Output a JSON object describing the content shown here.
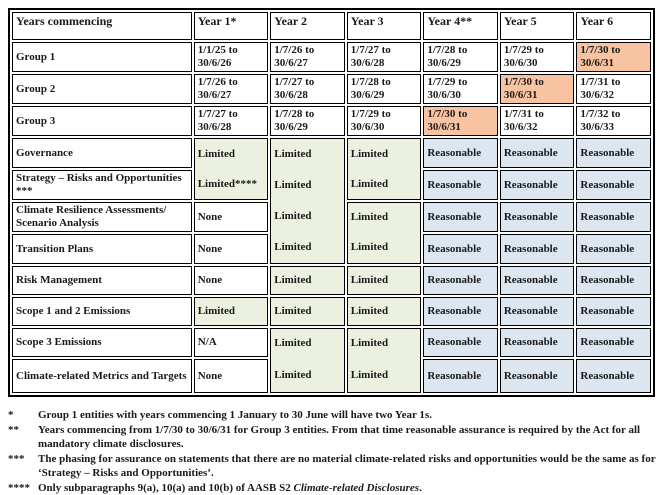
{
  "colors": {
    "limited_green": "#EBF1DE",
    "reasonable_blue": "#DCE6F1",
    "highlight_orange": "#F8C3A0",
    "border": "#000000",
    "text": "#1a1a1a"
  },
  "table": {
    "header": [
      "Years commencing",
      "Year 1*",
      "Year 2",
      "Year 3",
      "Year 4**",
      "Year 5",
      "Year 6"
    ],
    "group_rows": [
      {
        "label": "Group 1",
        "cells": [
          "1/1/25 to 30/6/26",
          "1/7/26 to 30/6/27",
          "1/7/27 to 30/6/28",
          "1/7/28 to 30/6/29",
          "1/7/29 to 30/6/30",
          "1/7/30 to 30/6/31"
        ],
        "highlight_index": 5
      },
      {
        "label": "Group 2",
        "cells": [
          "1/7/26 to 30/6/27",
          "1/7/27 to 30/6/28",
          "1/7/28 to 30/6/29",
          "1/7/29 to 30/6/30",
          "1/7/30 to 30/6/31",
          "1/7/31 to 30/6/32"
        ],
        "highlight_index": 4
      },
      {
        "label": "Group 3",
        "cells": [
          "1/7/27 to 30/6/28",
          "1/7/28 to 30/6/29",
          "1/7/29 to 30/6/30",
          "1/7/30 to 30/6/31",
          "1/7/31 to 30/6/32",
          "1/7/32 to 30/6/33"
        ],
        "highlight_index": 3
      }
    ],
    "assurance_rows": [
      {
        "label": "Governance",
        "cells": [
          "Limited",
          "Limited",
          "Limited",
          "Reasonable",
          "Reasonable",
          "Reasonable"
        ]
      },
      {
        "label": "Strategy – Risks and Opportunities ***",
        "cells": [
          "Limited****",
          "Limited",
          "Limited",
          "Reasonable",
          "Reasonable",
          "Reasonable"
        ]
      },
      {
        "label": "Climate Resilience Assessments/ Scenario Analysis",
        "cells": [
          "None",
          "Limited",
          "Limited",
          "Reasonable",
          "Reasonable",
          "Reasonable"
        ]
      },
      {
        "label": "Transition Plans",
        "cells": [
          "None",
          "Limited",
          "Limited",
          "Reasonable",
          "Reasonable",
          "Reasonable"
        ]
      },
      {
        "label": "Risk Management",
        "cells": [
          "None",
          "Limited",
          "Limited",
          "Reasonable",
          "Reasonable",
          "Reasonable"
        ]
      },
      {
        "label": "Scope 1 and 2 Emissions",
        "cells": [
          "Limited",
          "Limited",
          "Limited",
          "Reasonable",
          "Reasonable",
          "Reasonable"
        ]
      },
      {
        "label": "Scope 3 Emissions",
        "cells": [
          "N/A",
          "Limited",
          "Limited",
          "Reasonable",
          "Reasonable",
          "Reasonable"
        ]
      },
      {
        "label": "Climate-related Metrics and Targets",
        "cells": [
          "None",
          "Limited",
          "Limited",
          "Reasonable",
          "Reasonable",
          "Reasonable"
        ]
      }
    ]
  },
  "footnotes": [
    {
      "marker": "*",
      "parts": [
        {
          "text": "Group 1 entities with years commencing 1 January to 30 June will have two Year 1s.",
          "italic": false
        }
      ]
    },
    {
      "marker": "**",
      "parts": [
        {
          "text": "Years commencing from 1/7/30 to 30/6/31 for Group 3 entities. From that time reasonable assurance is required by the Act for all mandatory climate disclosures.",
          "italic": false
        }
      ]
    },
    {
      "marker": "***",
      "parts": [
        {
          "text": "The phasing for assurance on statements that there are no material climate-related risks and opportunities would be the same as for ‘Strategy – Risks and Opportunities’.",
          "italic": false
        }
      ]
    },
    {
      "marker": "****",
      "parts": [
        {
          "text": "Only subparagraphs 9(a), 10(a) and 10(b) of AASB S2 ",
          "italic": false
        },
        {
          "text": "Climate-related Disclosures",
          "italic": true
        },
        {
          "text": ".",
          "italic": false
        }
      ]
    }
  ]
}
